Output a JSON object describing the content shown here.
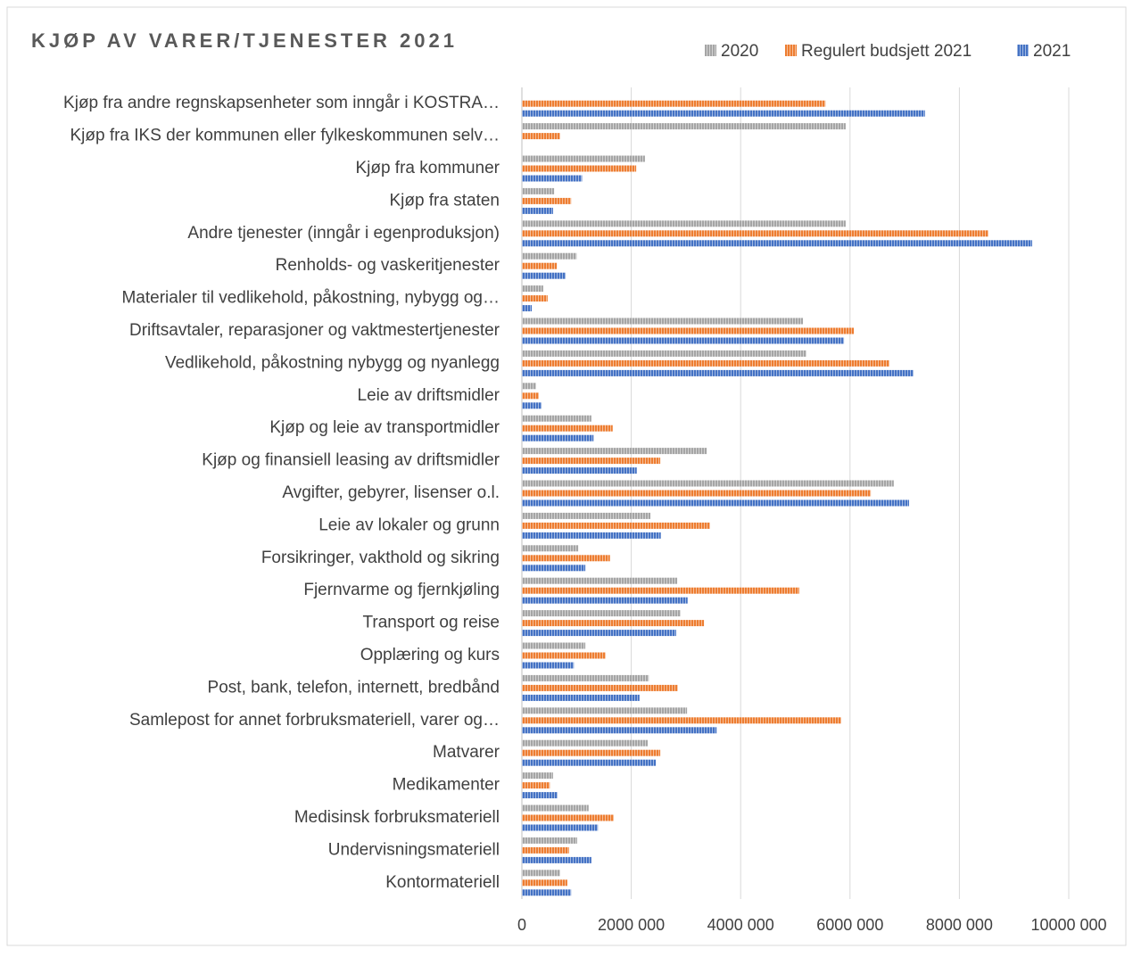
{
  "chart_data": {
    "type": "hbar",
    "title": "KJØP AV VARER/TJENESTER 2021",
    "categories": [
      "Kjøp fra andre regnskapsenheter som inngår i KOSTRA…",
      "Kjøp fra IKS der kommunen eller fylkeskommunen selv…",
      "Kjøp fra kommuner",
      "Kjøp fra staten",
      "Andre tjenester (inngår i egenproduksjon)",
      "Renholds- og vaskeritjenester",
      "Materialer til vedlikehold, påkostning, nybygg og…",
      "Driftsavtaler, reparasjoner og vaktmestertjenester",
      "Vedlikehold, påkostning nybygg og nyanlegg",
      "Leie av driftsmidler",
      "Kjøp og leie av transportmidler",
      "Kjøp og finansiell leasing av driftsmidler",
      "Avgifter, gebyrer, lisenser o.l.",
      "Leie av lokaler og grunn",
      "Forsikringer, vakthold og sikring",
      "Fjernvarme og fjernkjøling",
      "Transport og reise",
      "Opplæring og kurs",
      "Post, bank, telefon, internett, bredbånd",
      "Samlepost for annet forbruksmateriell, varer og…",
      "Matvarer",
      "Medikamenter",
      "Medisinsk forbruksmateriell",
      "Undervisningsmateriell",
      "Kontormateriell"
    ],
    "series": [
      {
        "name": "2020",
        "color": "#a5a5a5",
        "values": [
          null,
          5920000,
          2250000,
          590000,
          5920000,
          1000000,
          390000,
          5140000,
          5200000,
          260000,
          1270000,
          3380000,
          6800000,
          2350000,
          1030000,
          2840000,
          2900000,
          1160000,
          2320000,
          3020000,
          2300000,
          570000,
          1220000,
          1010000,
          700000
        ]
      },
      {
        "name": "Regulert budsjett 2021",
        "color": "#ed7d31",
        "values": [
          5550000,
          700000,
          2090000,
          900000,
          8530000,
          640000,
          470000,
          6070000,
          6720000,
          310000,
          1660000,
          2530000,
          6380000,
          3440000,
          1610000,
          5070000,
          3330000,
          1530000,
          2850000,
          5840000,
          2530000,
          510000,
          1680000,
          860000,
          830000
        ]
      },
      {
        "name": "2021",
        "color": "#4472c4",
        "values": [
          7370000,
          null,
          1100000,
          570000,
          9330000,
          800000,
          180000,
          5890000,
          7160000,
          360000,
          1310000,
          2100000,
          7080000,
          2540000,
          1160000,
          3030000,
          2820000,
          950000,
          2150000,
          3560000,
          2450000,
          650000,
          1390000,
          1270000,
          900000
        ]
      }
    ],
    "xlim": [
      0,
      10000000
    ],
    "xticks": [
      0,
      {
        "value": 2000000,
        "label": "2000 000"
      },
      {
        "value": 4000000,
        "label": "4000 000"
      },
      {
        "value": 6000000,
        "label": "6000 000"
      },
      {
        "value": 8000000,
        "label": "8000 000"
      },
      {
        "value": 10000000,
        "label": "10000 000"
      }
    ],
    "grid": true,
    "legend": "top-right"
  }
}
